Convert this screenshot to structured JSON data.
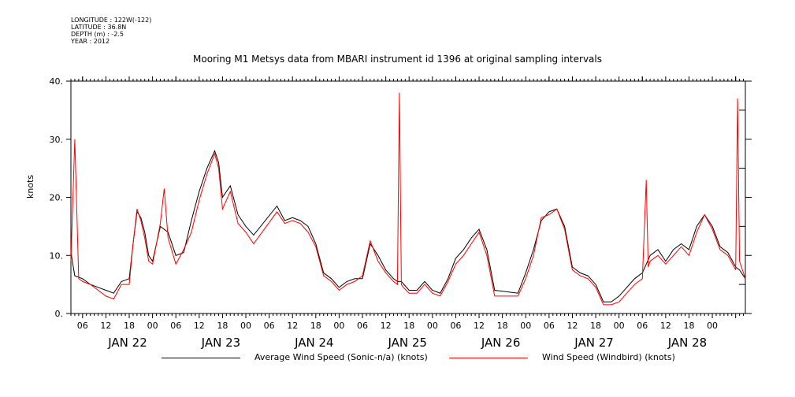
{
  "header": {
    "longitude": "LONGITUDE : 122W(-122)",
    "latitude": "LATITUDE : 36.8N",
    "depth": "DEPTH (m) : -2.5",
    "year": "YEAR : 2012"
  },
  "chart_data": {
    "type": "line",
    "title": "Mooring M1 Metsys data from MBARI instrument id 1396 at original sampling intervals",
    "ylabel": "knots",
    "ylim": [
      0,
      40
    ],
    "yticks": [
      0,
      10,
      20,
      30,
      40
    ],
    "ytick_labels": [
      "0.",
      "10.",
      "20.",
      "30.",
      "40."
    ],
    "xlim_hours": [
      "2012-01-21T21:00",
      "2012-01-29T02:30"
    ],
    "hour_ticks": [
      "06",
      "12",
      "18",
      "00",
      "06",
      "12",
      "18",
      "00",
      "06",
      "12",
      "18",
      "00",
      "06",
      "12",
      "18",
      "00",
      "06",
      "12",
      "18",
      "00",
      "06",
      "12",
      "18",
      "00",
      "06",
      "12",
      "18",
      "00"
    ],
    "day_labels": [
      "JAN 22",
      "JAN 23",
      "JAN 24",
      "JAN 25",
      "JAN 26",
      "JAN 27",
      "JAN 28"
    ],
    "grid": false,
    "legend_position": "bottom",
    "colors": {
      "avg": "#000000",
      "windbird": "#ff0000"
    },
    "series": [
      {
        "name": "Average Wind Speed (Sonic-n/a) (knots)",
        "color": "#000000",
        "x": [
          "2012-01-21T21:00",
          "2012-01-21T22:00",
          "2012-01-22T00:00",
          "2012-01-22T02:00",
          "2012-01-22T04:00",
          "2012-01-22T06:00",
          "2012-01-22T08:00",
          "2012-01-22T10:00",
          "2012-01-22T12:00",
          "2012-01-22T13:00",
          "2012-01-22T14:00",
          "2012-01-22T15:00",
          "2012-01-22T16:00",
          "2012-01-22T17:00",
          "2012-01-22T18:00",
          "2012-01-22T20:00",
          "2012-01-22T22:00",
          "2012-01-23T00:00",
          "2012-01-23T02:00",
          "2012-01-23T04:00",
          "2012-01-23T06:00",
          "2012-01-23T08:00",
          "2012-01-23T10:00",
          "2012-01-23T11:00",
          "2012-01-23T12:00",
          "2012-01-23T14:00",
          "2012-01-23T16:00",
          "2012-01-23T18:00",
          "2012-01-23T20:00",
          "2012-01-24T02:00",
          "2012-01-24T04:00",
          "2012-01-24T06:00",
          "2012-01-24T08:00",
          "2012-01-24T10:00",
          "2012-01-24T12:00",
          "2012-01-24T14:00",
          "2012-01-24T16:00",
          "2012-01-24T18:00",
          "2012-01-24T20:00",
          "2012-01-24T22:00",
          "2012-01-25T00:00",
          "2012-01-25T02:00",
          "2012-01-25T04:00",
          "2012-01-25T06:00",
          "2012-01-25T08:00",
          "2012-01-25T09:00",
          "2012-01-25T10:00",
          "2012-01-25T12:00",
          "2012-01-25T14:00",
          "2012-01-25T16:00",
          "2012-01-25T18:00",
          "2012-01-25T20:00",
          "2012-01-25T22:00",
          "2012-01-26T00:00",
          "2012-01-26T02:00",
          "2012-01-26T04:00",
          "2012-01-26T06:00",
          "2012-01-26T08:00",
          "2012-01-26T10:00",
          "2012-01-26T16:00",
          "2012-01-26T18:00",
          "2012-01-26T20:00",
          "2012-01-26T22:00",
          "2012-01-27T00:00",
          "2012-01-27T02:00",
          "2012-01-27T04:00",
          "2012-01-27T06:00",
          "2012-01-27T08:00",
          "2012-01-27T10:00",
          "2012-01-27T12:00",
          "2012-01-27T14:00",
          "2012-01-27T16:00",
          "2012-01-27T18:00",
          "2012-01-27T22:00",
          "2012-01-28T00:00",
          "2012-01-28T02:00",
          "2012-01-28T04:00",
          "2012-01-28T06:00",
          "2012-01-28T08:00",
          "2012-01-28T10:00",
          "2012-01-28T12:00",
          "2012-01-28T14:00",
          "2012-01-28T16:00",
          "2012-01-28T18:00",
          "2012-01-28T20:00",
          "2012-01-28T22:00",
          "2012-01-29T00:00",
          "2012-01-29T01:00",
          "2012-01-29T02:00",
          "2012-01-29T02:30"
        ],
        "values": [
          10.5,
          6.5,
          6.0,
          5.0,
          4.5,
          4.0,
          3.5,
          5.5,
          6.0,
          12.0,
          17.5,
          16.5,
          14.0,
          10.0,
          9.0,
          15.0,
          14.0,
          10.0,
          10.5,
          16.0,
          21.0,
          25.0,
          28.0,
          26.0,
          20.0,
          22.0,
          17.0,
          15.0,
          13.5,
          18.5,
          16.0,
          16.5,
          16.0,
          15.0,
          12.0,
          7.0,
          6.0,
          4.5,
          5.5,
          6.0,
          6.0,
          12.0,
          10.0,
          7.5,
          6.0,
          5.5,
          5.5,
          4.0,
          4.0,
          5.5,
          4.0,
          3.5,
          6.0,
          9.5,
          11.0,
          13.0,
          14.5,
          11.0,
          4.0,
          3.5,
          7.0,
          11.0,
          16.0,
          17.5,
          18.0,
          15.0,
          8.0,
          7.0,
          6.5,
          5.0,
          2.0,
          2.0,
          3.0,
          6.0,
          7.0,
          10.0,
          11.0,
          9.0,
          11.0,
          12.0,
          11.0,
          15.0,
          17.0,
          15.0,
          11.5,
          10.5,
          8.0,
          7.5,
          6.5,
          6.0
        ]
      },
      {
        "name": "Wind Speed (Windbird) (knots)",
        "color": "#ff0000",
        "x": [
          "2012-01-21T21:00",
          "2012-01-21T22:00",
          "2012-01-21T23:00",
          "2012-01-22T00:00",
          "2012-01-22T02:00",
          "2012-01-22T04:00",
          "2012-01-22T06:00",
          "2012-01-22T08:00",
          "2012-01-22T10:00",
          "2012-01-22T12:00",
          "2012-01-22T13:00",
          "2012-01-22T14:00",
          "2012-01-22T15:00",
          "2012-01-22T16:00",
          "2012-01-22T17:00",
          "2012-01-22T18:00",
          "2012-01-22T20:00",
          "2012-01-22T21:00",
          "2012-01-22T22:00",
          "2012-01-23T00:00",
          "2012-01-23T02:00",
          "2012-01-23T04:00",
          "2012-01-23T06:00",
          "2012-01-23T08:00",
          "2012-01-23T10:00",
          "2012-01-23T11:00",
          "2012-01-23T12:00",
          "2012-01-23T14:00",
          "2012-01-23T16:00",
          "2012-01-23T18:00",
          "2012-01-23T20:00",
          "2012-01-24T02:00",
          "2012-01-24T04:00",
          "2012-01-24T06:00",
          "2012-01-24T08:00",
          "2012-01-24T10:00",
          "2012-01-24T12:00",
          "2012-01-24T14:00",
          "2012-01-24T16:00",
          "2012-01-24T18:00",
          "2012-01-24T20:00",
          "2012-01-24T22:00",
          "2012-01-25T00:00",
          "2012-01-25T02:00",
          "2012-01-25T04:00",
          "2012-01-25T06:00",
          "2012-01-25T08:00",
          "2012-01-25T09:00",
          "2012-01-25T09:30",
          "2012-01-25T10:00",
          "2012-01-25T10:30",
          "2012-01-25T12:00",
          "2012-01-25T14:00",
          "2012-01-25T16:00",
          "2012-01-25T18:00",
          "2012-01-25T20:00",
          "2012-01-25T22:00",
          "2012-01-26T00:00",
          "2012-01-26T02:00",
          "2012-01-26T04:00",
          "2012-01-26T06:00",
          "2012-01-26T08:00",
          "2012-01-26T10:00",
          "2012-01-26T16:00",
          "2012-01-26T18:00",
          "2012-01-26T20:00",
          "2012-01-26T22:00",
          "2012-01-27T00:00",
          "2012-01-27T02:00",
          "2012-01-27T04:00",
          "2012-01-27T06:00",
          "2012-01-27T08:00",
          "2012-01-27T10:00",
          "2012-01-27T12:00",
          "2012-01-27T14:00",
          "2012-01-27T16:00",
          "2012-01-27T18:00",
          "2012-01-27T22:00",
          "2012-01-28T00:00",
          "2012-01-28T01:00",
          "2012-01-28T01:30",
          "2012-01-28T02:00",
          "2012-01-28T04:00",
          "2012-01-28T06:00",
          "2012-01-28T08:00",
          "2012-01-28T10:00",
          "2012-01-28T12:00",
          "2012-01-28T14:00",
          "2012-01-28T16:00",
          "2012-01-28T18:00",
          "2012-01-28T20:00",
          "2012-01-28T22:00",
          "2012-01-29T00:00",
          "2012-01-29T00:30",
          "2012-01-29T01:00",
          "2012-01-29T02:00",
          "2012-01-29T02:30"
        ],
        "values": [
          9.0,
          30.0,
          6.0,
          5.5,
          5.0,
          4.0,
          3.0,
          2.5,
          5.0,
          5.0,
          12.0,
          18.0,
          16.0,
          13.0,
          9.0,
          8.5,
          15.5,
          21.5,
          13.0,
          8.5,
          11.0,
          14.0,
          19.5,
          24.0,
          27.5,
          25.0,
          18.0,
          21.0,
          15.5,
          14.0,
          12.0,
          17.5,
          15.5,
          16.0,
          15.5,
          14.0,
          11.5,
          6.5,
          5.5,
          4.0,
          5.0,
          5.5,
          6.5,
          12.5,
          9.0,
          7.0,
          5.5,
          5.0,
          38.0,
          5.0,
          4.5,
          3.5,
          3.5,
          5.0,
          3.5,
          3.0,
          5.5,
          8.5,
          10.0,
          12.0,
          14.0,
          10.0,
          3.0,
          3.0,
          6.0,
          10.0,
          16.5,
          17.0,
          18.0,
          14.5,
          7.5,
          6.5,
          6.0,
          4.5,
          1.5,
          1.5,
          2.0,
          5.0,
          6.0,
          23.0,
          8.0,
          9.0,
          10.0,
          8.5,
          10.0,
          11.5,
          10.0,
          14.0,
          17.0,
          14.5,
          11.0,
          10.0,
          7.5,
          37.0,
          9.0,
          7.0,
          6.0
        ]
      }
    ]
  }
}
